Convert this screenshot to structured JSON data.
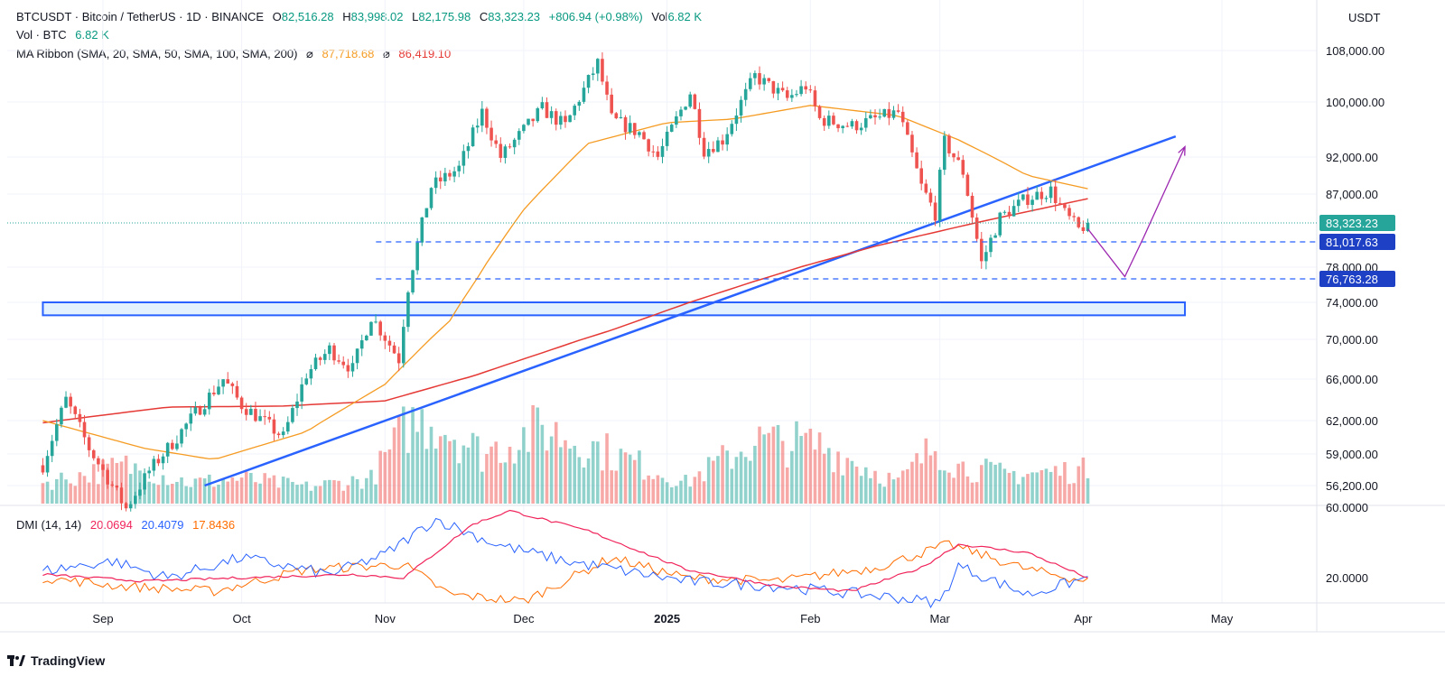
{
  "header": {
    "symbol": "BTCUSDT · Bitcoin / TetherUS · 1D · BINANCE",
    "o_label": "O",
    "o_value": "82,516.28",
    "h_label": "H",
    "h_value": "83,998.02",
    "l_label": "L",
    "l_value": "82,175.98",
    "c_label": "C",
    "c_value": "83,323.23",
    "change": "+806.94 (+0.98%)",
    "vol_label": "Vol",
    "vol_value": "6.82 K"
  },
  "volume_legend": {
    "label": "Vol · BTC",
    "value": "6.82 K"
  },
  "ma_legend": {
    "label": "MA Ribbon (SMA, 20, SMA, 50, SMA, 100, SMA, 200)",
    "symbol": "⌀",
    "value1": "87,718.68",
    "value2": "86,419.10"
  },
  "dmi_legend": {
    "label": "DMI (14, 14)",
    "adx": "20.0694",
    "plus_di": "20.4079",
    "minus_di": "17.8436"
  },
  "currency": "USDT",
  "brand": "TradingView",
  "colors": {
    "up": "#26a69a",
    "down": "#ef5350",
    "ma50": "#f59b22",
    "ma200": "#e53935",
    "trend": "#2962ff",
    "projection": "#9c27b0",
    "adx": "#f0245b",
    "plus_di": "#2962ff",
    "minus_di": "#ff6d00"
  },
  "chart_data": {
    "type": "candlestick",
    "y_axis_labels": [
      "108,000.00",
      "100,000.00",
      "92,000.00",
      "87,000.00",
      "78,000.00",
      "74,000.00",
      "70,000.00",
      "66,000.00",
      "62,000.00",
      "59,000.00",
      "56,200.00"
    ],
    "y_axis_values": [
      108000,
      100000,
      92000,
      87000,
      78000,
      74000,
      70000,
      66000,
      62000,
      59000,
      56200
    ],
    "x_axis_labels": [
      "Sep",
      "Oct",
      "Nov",
      "Dec",
      "2025",
      "Feb",
      "Mar",
      "Apr",
      "May"
    ],
    "x_axis_dates": [
      "2024-09-01",
      "2024-10-01",
      "2024-11-01",
      "2024-12-01",
      "2025-01-01",
      "2025-02-01",
      "2025-03-01",
      "2025-04-01",
      "2025-05-01"
    ],
    "x_range": [
      "2024-08-19",
      "2025-05-31"
    ],
    "last_date": "2025-04-02",
    "current_price": {
      "label": "83,323.23",
      "value": 83323.23
    },
    "horizontal_levels": [
      {
        "label": "81,017.63",
        "value": 81017.63,
        "from": "2024-11-01"
      },
      {
        "label": "76,763.28",
        "value": 76763.28,
        "from": "2024-11-01"
      }
    ],
    "support_zone": {
      "low": 72600,
      "high": 74000,
      "from": "2024-08-19",
      "to": "2025-04-23"
    },
    "trendline": {
      "start": {
        "date": "2024-09-23",
        "price": 56200
      },
      "end": {
        "date": "2025-04-21",
        "price": 95000
      }
    },
    "projection": [
      {
        "date": "2025-04-02",
        "price": 82600
      },
      {
        "date": "2025-04-10",
        "price": 77000
      },
      {
        "date": "2025-04-14",
        "price": 81500
      },
      {
        "date": "2025-04-23",
        "price": 93500
      }
    ],
    "price_anchors": [
      [
        "2024-08-19",
        58000
      ],
      [
        "2024-08-24",
        64000
      ],
      [
        "2024-08-29",
        59500
      ],
      [
        "2024-09-06",
        54200
      ],
      [
        "2024-09-11",
        57500
      ],
      [
        "2024-09-17",
        60500
      ],
      [
        "2024-09-27",
        66000
      ],
      [
        "2024-10-01",
        63500
      ],
      [
        "2024-10-10",
        60500
      ],
      [
        "2024-10-15",
        66500
      ],
      [
        "2024-10-20",
        69000
      ],
      [
        "2024-10-25",
        67000
      ],
      [
        "2024-10-29",
        72500
      ],
      [
        "2024-11-04",
        68000
      ],
      [
        "2024-11-06",
        75800
      ],
      [
        "2024-11-11",
        88000
      ],
      [
        "2024-11-17",
        90500
      ],
      [
        "2024-11-22",
        98500
      ],
      [
        "2024-11-26",
        92000
      ],
      [
        "2024-12-05",
        99000
      ],
      [
        "2024-12-10",
        96500
      ],
      [
        "2024-12-17",
        106000
      ],
      [
        "2024-12-20",
        97500
      ],
      [
        "2024-12-26",
        95500
      ],
      [
        "2024-12-30",
        92000
      ],
      [
        "2025-01-06",
        101500
      ],
      [
        "2025-01-09",
        93000
      ],
      [
        "2025-01-13",
        94500
      ],
      [
        "2025-01-20",
        104000
      ],
      [
        "2025-01-27",
        100500
      ],
      [
        "2025-01-31",
        102500
      ],
      [
        "2025-02-03",
        97500
      ],
      [
        "2025-02-10",
        96500
      ],
      [
        "2025-02-20",
        98500
      ],
      [
        "2025-02-25",
        88000
      ],
      [
        "2025-02-28",
        84500
      ],
      [
        "2025-03-02",
        94200
      ],
      [
        "2025-03-06",
        90000
      ],
      [
        "2025-03-10",
        78500
      ],
      [
        "2025-03-14",
        84000
      ],
      [
        "2025-03-20",
        86500
      ],
      [
        "2025-03-25",
        87500
      ],
      [
        "2025-03-28",
        84500
      ],
      [
        "2025-03-31",
        82500
      ],
      [
        "2025-04-02",
        83323
      ]
    ],
    "ma50_anchors": [
      [
        "2024-08-19",
        62000
      ],
      [
        "2024-09-10",
        59500
      ],
      [
        "2024-09-25",
        58500
      ],
      [
        "2024-10-15",
        61000
      ],
      [
        "2024-11-01",
        65500
      ],
      [
        "2024-11-15",
        72000
      ],
      [
        "2024-12-01",
        85000
      ],
      [
        "2024-12-15",
        94000
      ],
      [
        "2025-01-01",
        97000
      ],
      [
        "2025-01-15",
        97500
      ],
      [
        "2025-02-01",
        99500
      ],
      [
        "2025-02-20",
        98000
      ],
      [
        "2025-03-05",
        94500
      ],
      [
        "2025-03-20",
        89500
      ],
      [
        "2025-04-02",
        87718
      ]
    ],
    "ma200_anchors": [
      [
        "2024-08-19",
        61800
      ],
      [
        "2024-09-15",
        63300
      ],
      [
        "2024-10-10",
        63400
      ],
      [
        "2024-11-01",
        63900
      ],
      [
        "2024-11-20",
        66300
      ],
      [
        "2024-12-20",
        71000
      ],
      [
        "2025-01-20",
        76500
      ],
      [
        "2025-02-15",
        80500
      ],
      [
        "2025-03-10",
        83500
      ],
      [
        "2025-04-02",
        86419
      ]
    ],
    "volume_anchors": [
      [
        "2024-08-19",
        25
      ],
      [
        "2024-09-06",
        45
      ],
      [
        "2024-09-20",
        25
      ],
      [
        "2024-10-01",
        30
      ],
      [
        "2024-10-15",
        20
      ],
      [
        "2024-10-29",
        30
      ],
      [
        "2024-11-06",
        95
      ],
      [
        "2024-11-12",
        100
      ],
      [
        "2024-11-22",
        60
      ],
      [
        "2024-12-05",
        90
      ],
      [
        "2024-12-20",
        60
      ],
      [
        "2025-01-05",
        25
      ],
      [
        "2025-01-20",
        75
      ],
      [
        "2025-02-03",
        70
      ],
      [
        "2025-02-20",
        25
      ],
      [
        "2025-02-28",
        70
      ],
      [
        "2025-03-05",
        45
      ],
      [
        "2025-03-15",
        35
      ],
      [
        "2025-04-02",
        40
      ]
    ],
    "dmi_y_label": "20.0000",
    "dmi_top_label": "60.0000",
    "adx_anchors": [
      [
        "2024-08-19",
        22
      ],
      [
        "2024-09-10",
        18
      ],
      [
        "2024-10-01",
        20
      ],
      [
        "2024-10-25",
        22
      ],
      [
        "2024-11-05",
        20
      ],
      [
        "2024-11-20",
        52
      ],
      [
        "2024-11-28",
        60
      ],
      [
        "2024-12-15",
        48
      ],
      [
        "2025-01-05",
        25
      ],
      [
        "2025-01-25",
        15
      ],
      [
        "2025-02-10",
        12
      ],
      [
        "2025-02-25",
        26
      ],
      [
        "2025-03-05",
        40
      ],
      [
        "2025-03-20",
        35
      ],
      [
        "2025-04-02",
        20
      ]
    ],
    "plus_di_anchors": [
      [
        "2024-08-19",
        24
      ],
      [
        "2024-09-03",
        30
      ],
      [
        "2024-09-15",
        20
      ],
      [
        "2024-10-01",
        32
      ],
      [
        "2024-10-20",
        22
      ],
      [
        "2024-11-01",
        34
      ],
      [
        "2024-11-12",
        55
      ],
      [
        "2024-11-25",
        40
      ],
      [
        "2024-12-10",
        30
      ],
      [
        "2025-01-05",
        18
      ],
      [
        "2025-01-25",
        15
      ],
      [
        "2025-02-20",
        8
      ],
      [
        "2025-03-01",
        5
      ],
      [
        "2025-03-05",
        27
      ],
      [
        "2025-03-20",
        10
      ],
      [
        "2025-04-02",
        20
      ]
    ],
    "minus_di_anchors": [
      [
        "2024-08-19",
        20
      ],
      [
        "2024-09-05",
        15
      ],
      [
        "2024-09-25",
        12
      ],
      [
        "2024-10-15",
        25
      ],
      [
        "2024-11-05",
        28
      ],
      [
        "2024-11-15",
        10
      ],
      [
        "2024-12-01",
        6
      ],
      [
        "2024-12-20",
        32
      ],
      [
        "2025-01-05",
        20
      ],
      [
        "2025-01-25",
        18
      ],
      [
        "2025-02-15",
        26
      ],
      [
        "2025-03-03",
        40
      ],
      [
        "2025-03-20",
        25
      ],
      [
        "2025-04-02",
        18
      ]
    ]
  }
}
